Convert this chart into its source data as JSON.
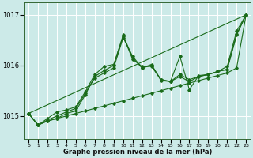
{
  "xlabel": "Graphe pression niveau de la mer (hPa)",
  "bg_color": "#cceae8",
  "grid_color": "#ffffff",
  "line_color": "#1a6b1a",
  "ylim": [
    1014.55,
    1017.25
  ],
  "xlim": [
    -0.5,
    23.5
  ],
  "yticks": [
    1015,
    1016,
    1017
  ],
  "xticks": [
    0,
    1,
    2,
    3,
    4,
    5,
    6,
    7,
    8,
    9,
    10,
    11,
    12,
    13,
    14,
    15,
    16,
    17,
    18,
    19,
    20,
    21,
    22,
    23
  ],
  "series": [
    [
      1015.05,
      1014.82,
      1014.9,
      1014.95,
      1015.0,
      1015.05,
      1015.1,
      1015.15,
      1015.2,
      1015.25,
      1015.3,
      1015.35,
      1015.4,
      1015.45,
      1015.5,
      1015.55,
      1015.6,
      1015.65,
      1015.7,
      1015.75,
      1015.8,
      1015.85,
      1015.95,
      1017.0
    ],
    [
      1015.05,
      1014.82,
      1014.92,
      1015.0,
      1015.08,
      1015.15,
      1015.45,
      1015.75,
      1015.85,
      1015.95,
      1016.55,
      1016.18,
      1015.95,
      1016.0,
      1015.72,
      1015.68,
      1016.18,
      1015.52,
      1015.8,
      1015.82,
      1015.88,
      1015.92,
      1016.6,
      1017.0
    ],
    [
      1015.05,
      1014.82,
      1014.9,
      1014.95,
      1015.05,
      1015.1,
      1015.42,
      1015.78,
      1015.9,
      1016.0,
      1016.6,
      1016.15,
      1015.95,
      1016.02,
      1015.7,
      1015.68,
      1015.78,
      1015.68,
      1015.78,
      1015.82,
      1015.88,
      1015.92,
      1016.62,
      1017.0
    ],
    [
      1015.05,
      1014.82,
      1014.95,
      1015.08,
      1015.12,
      1015.18,
      1015.48,
      1015.82,
      1015.98,
      1016.02,
      1016.58,
      1016.12,
      1015.98,
      1015.98,
      1015.72,
      1015.68,
      1015.82,
      1015.72,
      1015.78,
      1015.82,
      1015.88,
      1015.98,
      1016.68,
      1017.0
    ]
  ],
  "straight_line": [
    1015.05,
    1017.0
  ]
}
